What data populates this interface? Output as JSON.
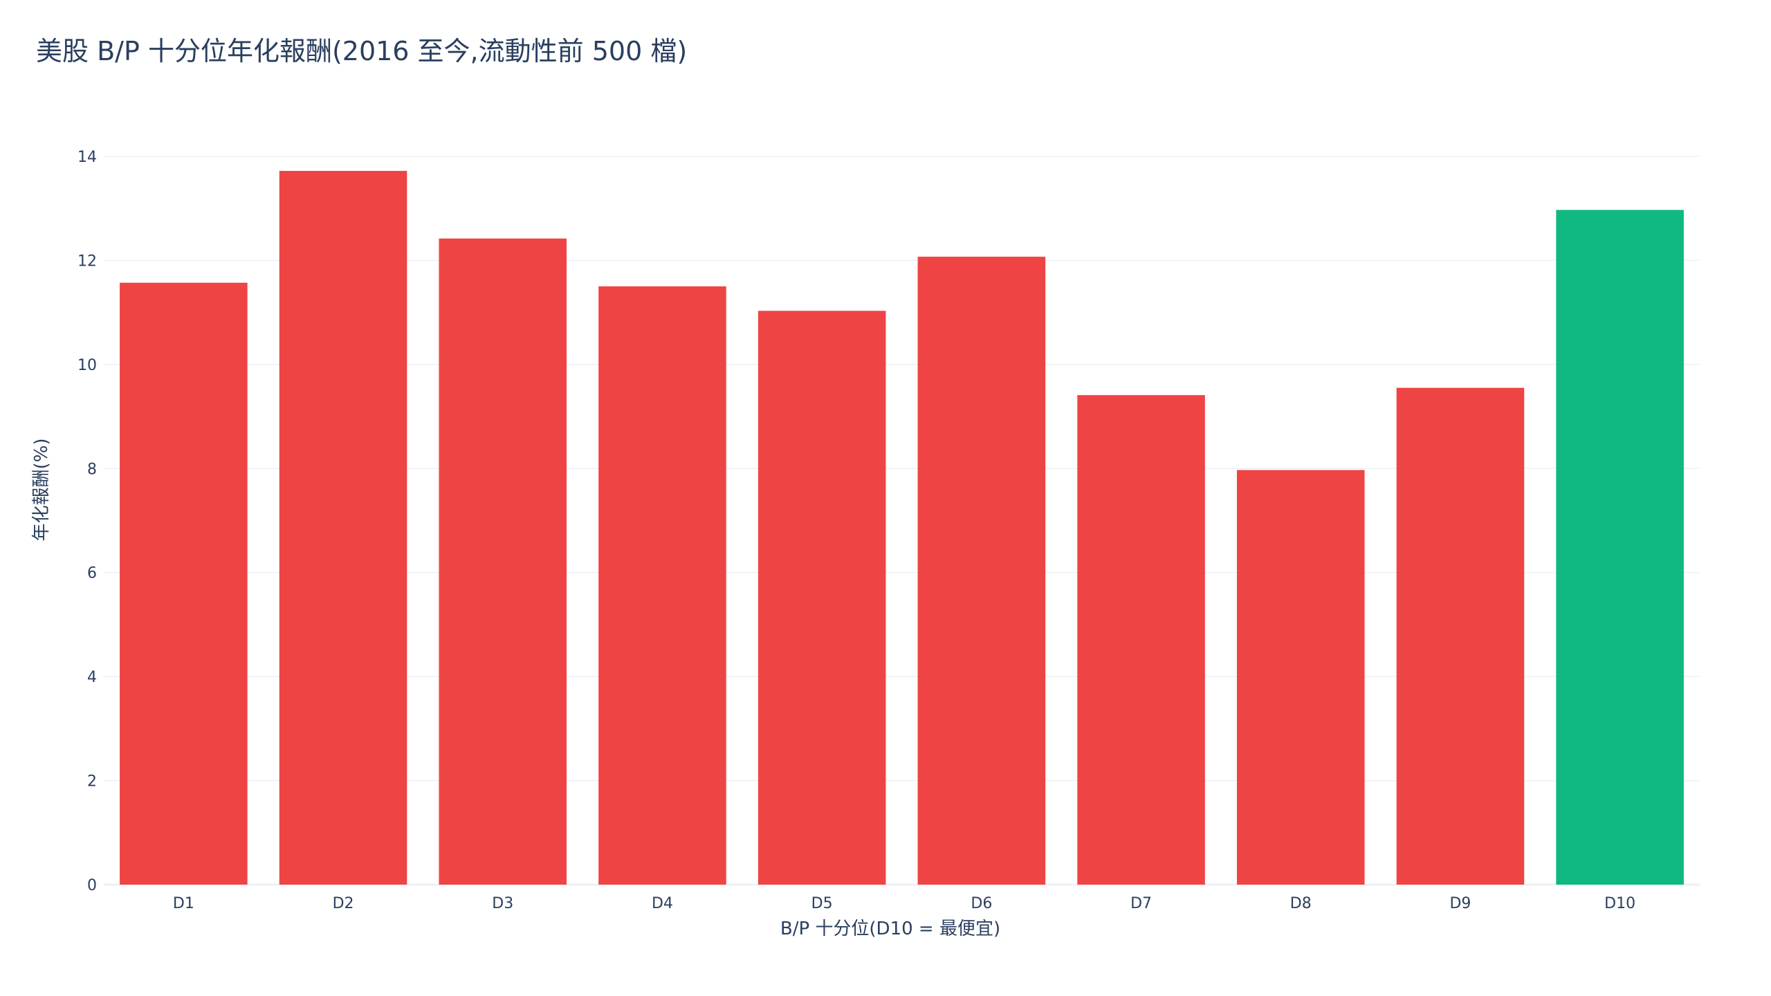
{
  "chart_data": {
    "type": "bar",
    "title": "美股 B/P 十分位年化報酬(2016 至今,流動性前 500 檔)",
    "xlabel": "B/P 十分位(D10 = 最便宜)",
    "ylabel": "年化報酬(%)",
    "categories": [
      "D1",
      "D2",
      "D3",
      "D4",
      "D5",
      "D6",
      "D7",
      "D8",
      "D9",
      "D10"
    ],
    "values": [
      11.57,
      13.72,
      12.42,
      11.5,
      11.03,
      12.07,
      9.41,
      7.97,
      9.55,
      12.97
    ],
    "colors": [
      "#ef4444",
      "#ef4444",
      "#ef4444",
      "#ef4444",
      "#ef4444",
      "#ef4444",
      "#ef4444",
      "#ef4444",
      "#ef4444",
      "#10b981"
    ],
    "ylim": [
      0,
      14
    ],
    "yticks": [
      0,
      2,
      4,
      6,
      8,
      10,
      12,
      14
    ],
    "grid": true,
    "legend": "none"
  }
}
